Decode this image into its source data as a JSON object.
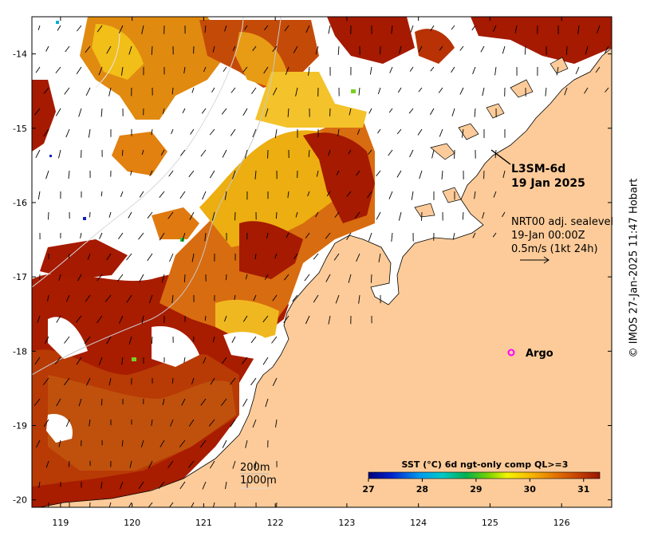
{
  "map": {
    "product": "L3SM-6d",
    "date": "19 Jan 2025",
    "current_note": {
      "line1": "NRT00 adj. sealevel",
      "line2": "19-Jan 00:00Z",
      "line3": "0.5m/s (1kt 24h)"
    },
    "argo_label": "Argo",
    "isobaths": [
      "200m",
      "1000m"
    ],
    "credit": "© IMOS 27-Jan-2025 11:47 Hobart",
    "lat_ticks": [
      "-14",
      "-15",
      "-16",
      "-17",
      "-18",
      "-19",
      "-20"
    ],
    "lon_ticks": [
      "119",
      "120",
      "121",
      "122",
      "123",
      "124",
      "125",
      "126"
    ],
    "colorbar": {
      "title": "SST (°C) 6d ngt-only comp QL>=3",
      "ticks": [
        "27",
        "28",
        "29",
        "30",
        "31"
      ],
      "range": [
        27,
        31.3
      ]
    },
    "colors": {
      "land": "#fdcb99",
      "hot": "#a61a00",
      "argo": "#ff00ff"
    },
    "extent": {
      "lon": [
        118.6,
        126.7
      ],
      "lat": [
        -20.1,
        -13.5
      ]
    }
  }
}
